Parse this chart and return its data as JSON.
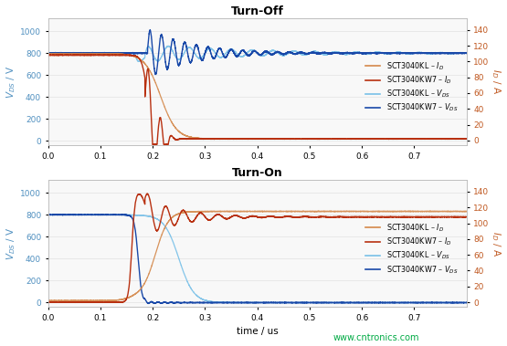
{
  "title_top": "Turn-Off",
  "title_bottom": "Turn-On",
  "xlabel": "time / us",
  "ylabel_left": "$V_{DS}$ / V",
  "ylabel_right": "$I_D$ / A",
  "xlim": [
    0,
    0.8
  ],
  "ylim_left": [
    -40,
    1120
  ],
  "ylim_right": [
    -6,
    155
  ],
  "yticks_left": [
    0,
    200,
    400,
    600,
    800,
    1000
  ],
  "yticks_right": [
    0,
    20,
    40,
    60,
    80,
    100,
    120,
    140
  ],
  "xticks": [
    0,
    0.1,
    0.2,
    0.3,
    0.4,
    0.5,
    0.6,
    0.7
  ],
  "color_KL_I": "#D4884A",
  "color_KW7_I": "#B83010",
  "color_KL_V": "#78C0E8",
  "color_KW7_V": "#1848A8",
  "legend_labels": [
    "SCT3040KL – $I_D$",
    "SCT3040KW7 – $I_D$",
    "SCT3040KL – $V_{DS}$",
    "SCT3040KW7 – $V_{DS}$"
  ],
  "watermark": "www.cntronics.com",
  "watermark_color": "#00AA44",
  "bg_color": "#F8F8F8"
}
